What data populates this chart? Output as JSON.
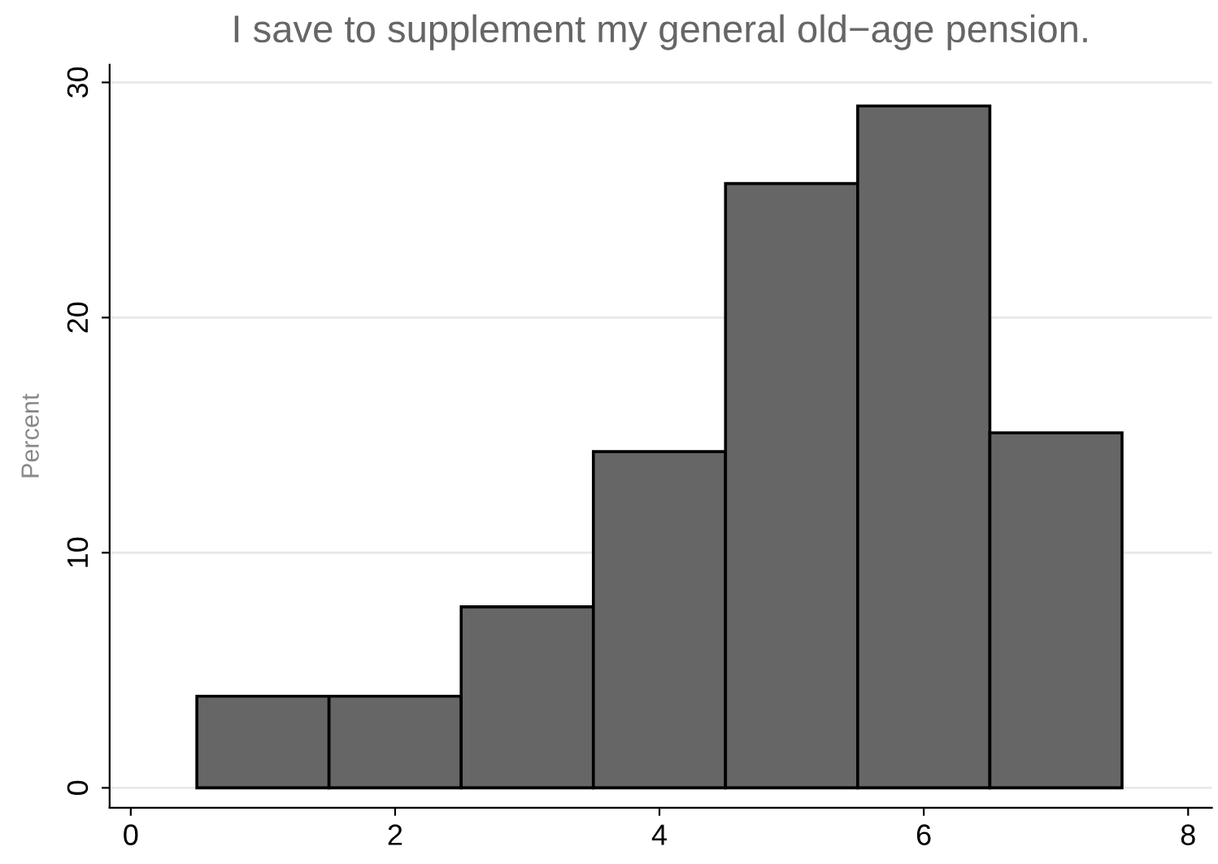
{
  "chart_data": {
    "type": "histogram",
    "title": "I save to supplement my general old−age pension.",
    "ylabel": "Percent",
    "bins": [
      0.5,
      1.5,
      2.5,
      3.5,
      4.5,
      5.5,
      6.5,
      7.5
    ],
    "values": [
      3.9,
      3.9,
      7.7,
      14.3,
      25.7,
      29.0,
      15.1
    ],
    "color": "#666666",
    "xlim": [
      -0.16,
      8.18
    ],
    "xticks": [
      0,
      2,
      4,
      6,
      8
    ],
    "ylim": [
      -0.85,
      30.75
    ],
    "yticks": [
      0,
      10,
      20,
      30
    ],
    "grid": "y"
  }
}
